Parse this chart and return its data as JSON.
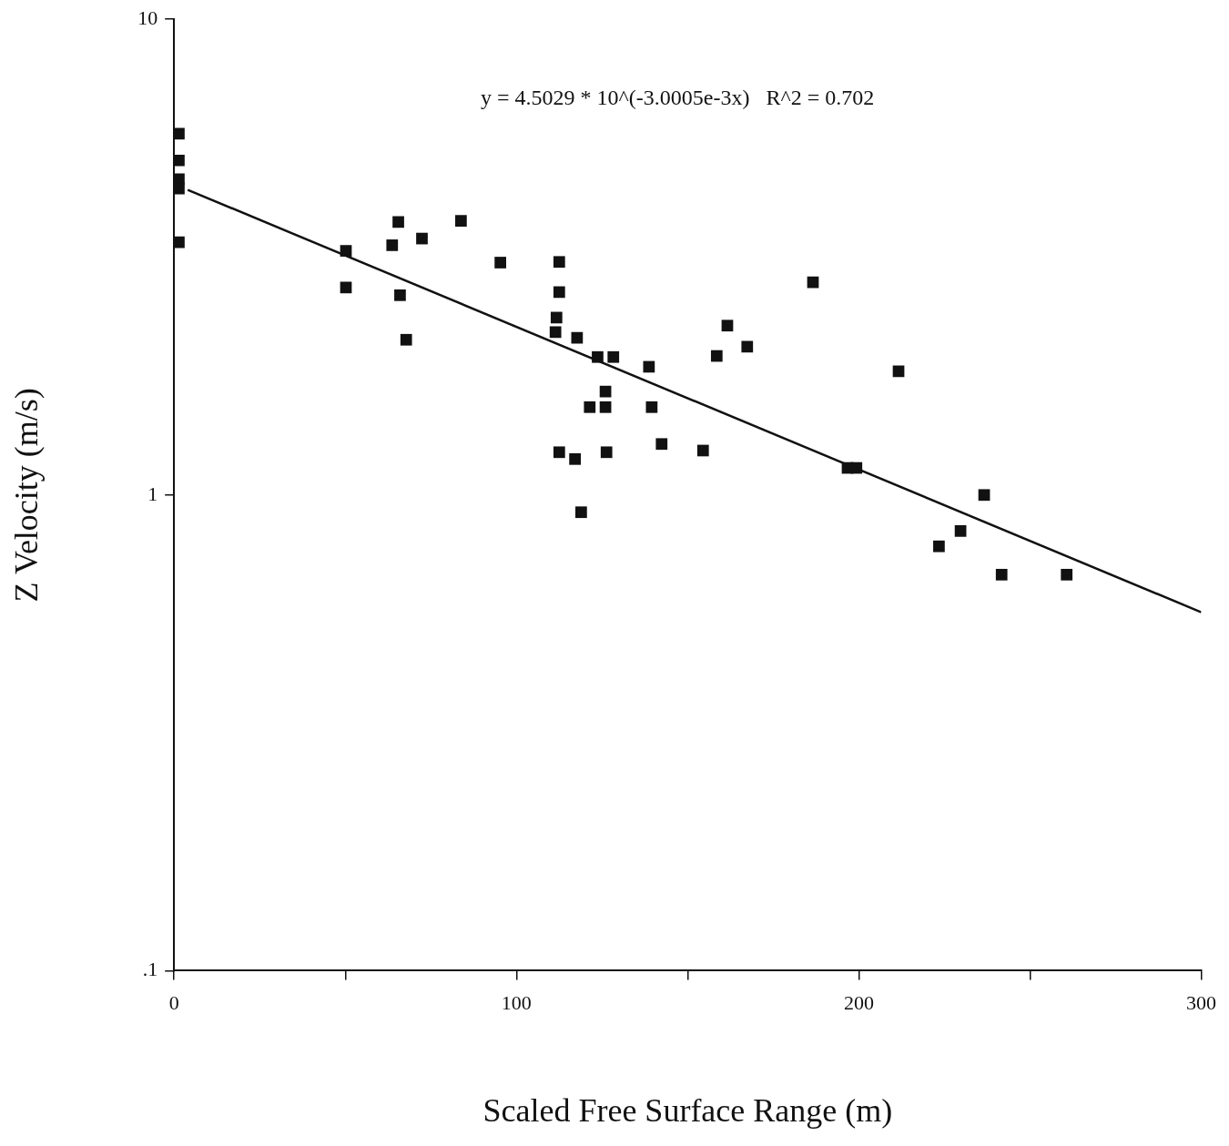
{
  "chart_data": {
    "type": "scatter",
    "xlabel": "Scaled Free Surface Range (m)",
    "ylabel": "Z Velocity (m/s)",
    "annotations": [
      "y = 4.5029 * 10^(-3.0005e-3x)   R^2 = 0.702"
    ],
    "xlim": [
      0,
      300
    ],
    "xticks": [
      0,
      {
        "value": 50,
        "label": null
      },
      100,
      {
        "value": 150,
        "label": null
      },
      200,
      {
        "value": 250,
        "label": null
      },
      300
    ],
    "ylim": [
      0.1,
      10
    ],
    "yticks": [
      {
        "value": 0.1,
        "label": ".1"
      },
      1,
      10
    ],
    "log": "y",
    "grid": false,
    "marker": "square",
    "series": [
      {
        "color": "#111111",
        "x": [
          1.4,
          1.4,
          1.4,
          1.4,
          1.4,
          50.2,
          50.2,
          63.7,
          65.5,
          66,
          67.8,
          72.4,
          83.8,
          95.3,
          111.4,
          111.7,
          112.5,
          112.5,
          117.7,
          112.5,
          117.1,
          118.9,
          121.4,
          123.7,
          126,
          126,
          126.3,
          128.3,
          138.7,
          139.5,
          142.4,
          154.5,
          158.5,
          161.6,
          167.4,
          186.6,
          196.7,
          199.3,
          211.6,
          223.4,
          229.7,
          236.6,
          241.7,
          260.7
        ],
        "values": [
          5.75,
          5.05,
          4.61,
          4.41,
          3.4,
          3.26,
          2.73,
          3.35,
          3.75,
          2.63,
          2.12,
          3.46,
          3.77,
          3.08,
          2.2,
          2.36,
          3.09,
          2.67,
          2.14,
          1.23,
          1.19,
          0.92,
          1.53,
          1.95,
          1.65,
          1.53,
          1.23,
          1.95,
          1.86,
          1.53,
          1.28,
          1.24,
          1.96,
          2.27,
          2.05,
          2.8,
          1.14,
          1.14,
          1.82,
          0.78,
          0.84,
          1.0,
          0.68,
          0.68
        ]
      },
      {
        "type": "line",
        "marker": "none",
        "color": "#111111",
        "x": [
          4,
          300
        ],
        "values": [
          4.38,
          0.567
        ]
      }
    ]
  }
}
